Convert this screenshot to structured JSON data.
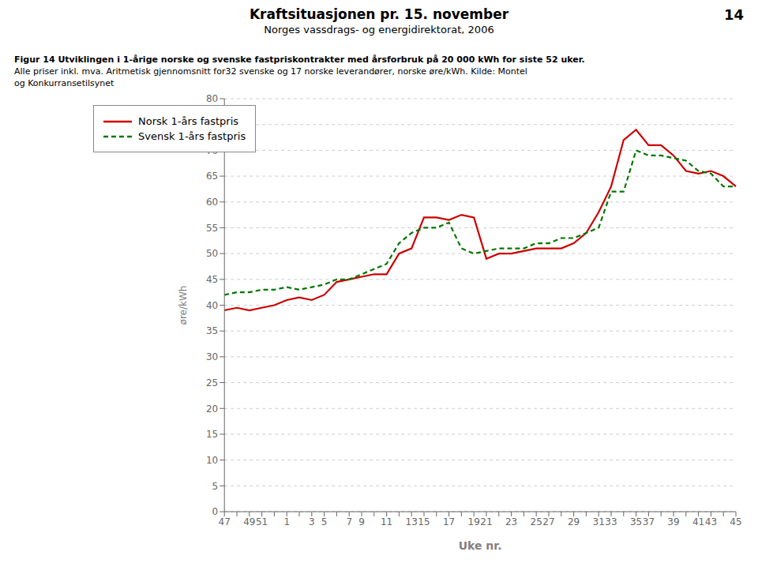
{
  "chart_data": {
    "type": "line",
    "title": "Kraftsituasjonen pr. 15. november",
    "subtitle": "Norges vassdrags- og energidirektorat, 2006",
    "annotations": [
      "14",
      "Figur 14 Utviklingen i 1-årige norske og svenske fastpriskontrakter med årsforbruk på 20 000 kWh for siste 52 uker.",
      "Alle priser inkl. mva. Aritmetisk gjennomsnitt for32 svenske og 17 norske leverandører, norske øre/kWh. Kilde: Montel",
      "og Konkurransetilsynet"
    ],
    "x_label": "Uke nr.",
    "y_label": "øre/kWh",
    "categories": [
      "47",
      null,
      "49",
      "51",
      null,
      "1",
      null,
      "3",
      "5",
      null,
      "7",
      "9",
      null,
      "11",
      null,
      "13",
      "15",
      null,
      "17",
      null,
      "19",
      "21",
      null,
      "23",
      null,
      "25",
      "27",
      null,
      "29",
      null,
      "31",
      "33",
      null,
      "35",
      "37",
      null,
      "39",
      null,
      "41",
      "43",
      null,
      "45"
    ],
    "series": [
      {
        "name": "Norsk 1-års fastpris",
        "color": "#cc0000",
        "line_style": "solid",
        "values": [
          39,
          39.5,
          39,
          39.5,
          40,
          41,
          41.5,
          41,
          42,
          44.5,
          45,
          45.5,
          46,
          46,
          50,
          51,
          57,
          57,
          56.5,
          57.5,
          57,
          49,
          50,
          50,
          50.5,
          51,
          51,
          51,
          52,
          54,
          58,
          63,
          72,
          74,
          71,
          71,
          69,
          66,
          65.5,
          66,
          65,
          63
        ]
      },
      {
        "name": "Svensk 1-års fastpris",
        "color": "#007700",
        "line_style": "dashed",
        "values": [
          42,
          42.5,
          42.5,
          43,
          43,
          43.5,
          43,
          43.5,
          44,
          45,
          45,
          46,
          47,
          48,
          52,
          54,
          55,
          55,
          56,
          51,
          50,
          50.5,
          51,
          51,
          51,
          52,
          52,
          53,
          53,
          54,
          55,
          62,
          62,
          70,
          69,
          69,
          68.5,
          68,
          66,
          65.5,
          63,
          63
        ]
      }
    ],
    "ylim": [
      0,
      80
    ],
    "yticks": [
      0,
      5,
      10,
      15,
      20,
      25,
      30,
      35,
      40,
      45,
      50,
      55,
      60,
      65,
      70,
      75,
      80
    ],
    "grid": true,
    "legend": "upper left"
  }
}
